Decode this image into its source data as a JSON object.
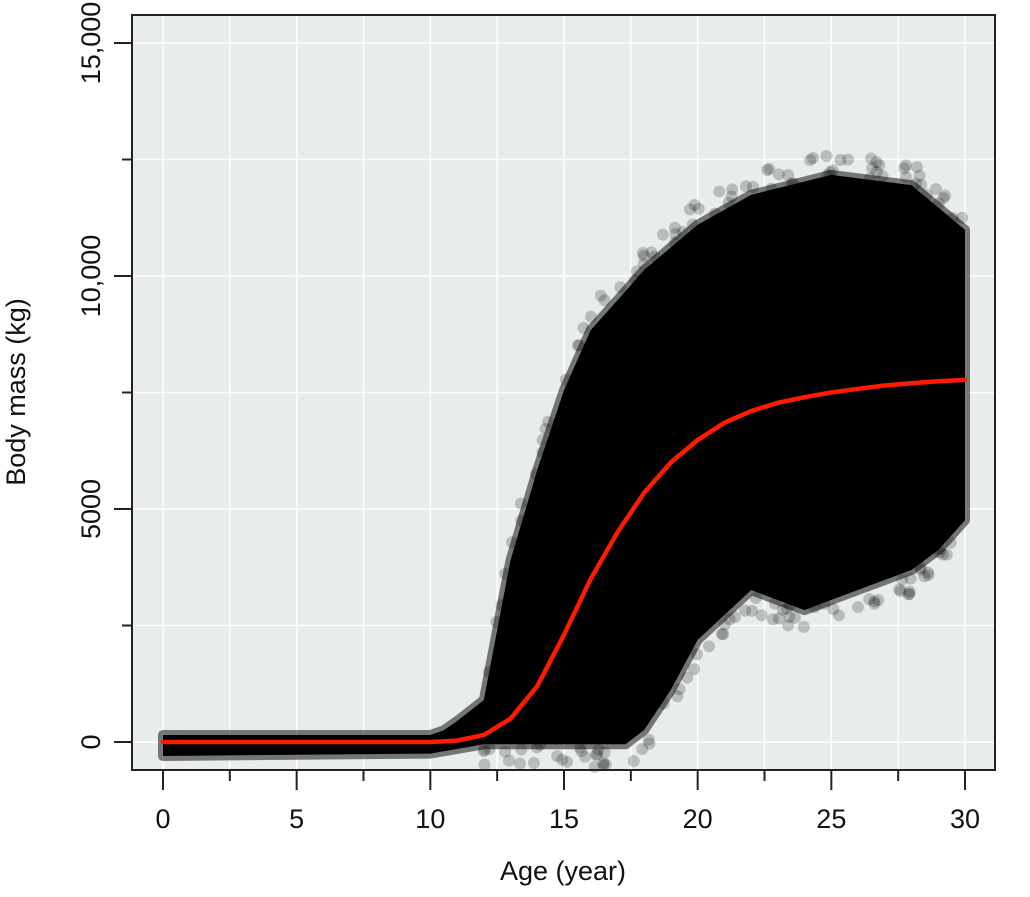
{
  "chart_data": {
    "type": "scatter",
    "title": "",
    "xlabel": "Age (year)",
    "ylabel": "Body mass (kg)",
    "xlim": [
      -1.2,
      31.2
    ],
    "ylim": [
      -600,
      15600
    ],
    "x_ticks": [
      0,
      5,
      10,
      15,
      20,
      25,
      30
    ],
    "x_tick_labels": [
      "0",
      "5",
      "10",
      "15",
      "20",
      "25",
      "30"
    ],
    "x_minor_ticks": [
      2.5,
      7.5,
      12.5,
      17.5,
      22.5,
      27.5
    ],
    "y_ticks": [
      0,
      5000,
      10000,
      15000
    ],
    "y_tick_labels": [
      "0",
      "5000",
      "10,000",
      "15,000"
    ],
    "y_minor_ticks": [
      2500,
      7500,
      12500
    ],
    "grid": true,
    "background_color": "#e8ecec",
    "grid_color": "#ffffff",
    "point_color": "#000000",
    "point_alpha": 0.2,
    "line_color": "#ff1a00",
    "point_cloud_envelope": {
      "upper": [
        [
          0,
          150
        ],
        [
          10,
          150
        ],
        [
          10.5,
          250
        ],
        [
          11,
          450
        ],
        [
          12,
          900
        ],
        [
          13,
          3900
        ],
        [
          14,
          5840
        ],
        [
          15,
          7550
        ],
        [
          16,
          8840
        ],
        [
          17,
          9480
        ],
        [
          18,
          10130
        ],
        [
          20,
          11100
        ],
        [
          22,
          11740
        ],
        [
          25,
          12170
        ],
        [
          28,
          11950
        ],
        [
          30,
          10990
        ]
      ],
      "lower": [
        [
          30,
          4760
        ],
        [
          29,
          4120
        ],
        [
          28,
          3690
        ],
        [
          25,
          3050
        ],
        [
          24,
          2830
        ],
        [
          22,
          3260
        ],
        [
          20,
          2190
        ],
        [
          19,
          1120
        ],
        [
          18,
          260
        ],
        [
          17.3,
          -50
        ],
        [
          12,
          -50
        ],
        [
          10,
          -250
        ],
        [
          0,
          -300
        ]
      ]
    },
    "mean_curve": {
      "x": [
        0,
        5,
        10,
        11,
        12,
        13,
        14,
        15,
        16,
        17,
        18,
        19,
        20,
        21,
        22,
        23,
        24,
        25,
        26,
        27,
        28,
        29,
        30
      ],
      "y": [
        0,
        0,
        0,
        30,
        150,
        500,
        1200,
        2300,
        3500,
        4500,
        5350,
        6000,
        6480,
        6850,
        7100,
        7280,
        7400,
        7500,
        7580,
        7650,
        7700,
        7740,
        7770
      ]
    }
  }
}
